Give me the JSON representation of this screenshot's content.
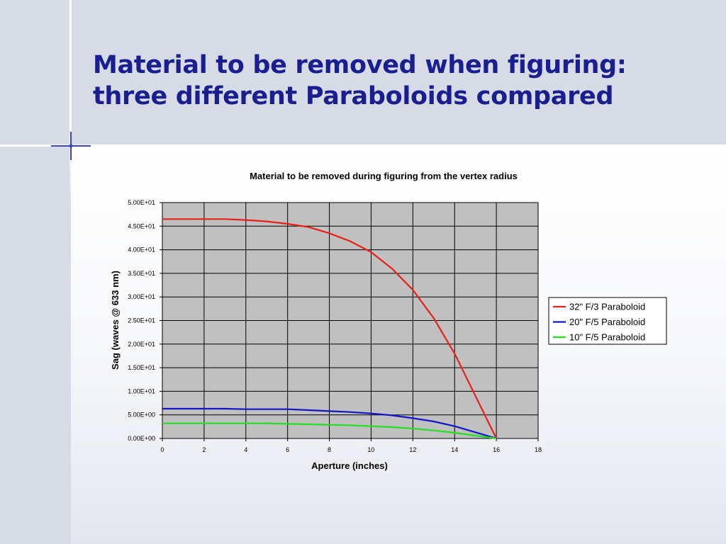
{
  "slide": {
    "title_line1": "Material to be removed when figuring:",
    "title_line2": "three different Paraboloids compared",
    "title_color": "#1a1f8f",
    "background_color": "#d6dbe6"
  },
  "chart_data": {
    "type": "line",
    "title": "Material to be removed during figuring from the vertex radius",
    "xlabel": "Aperture (inches)",
    "ylabel": "Sag (waves @ 633 nm)",
    "xlim": [
      0,
      18
    ],
    "ylim": [
      0,
      50
    ],
    "x_ticks": [
      0,
      2,
      4,
      6,
      8,
      10,
      12,
      14,
      16,
      18
    ],
    "x_tick_labels": [
      "0",
      "2",
      "4",
      "6",
      "8",
      "10",
      "12",
      "14",
      "16",
      "18"
    ],
    "y_ticks": [
      0,
      5,
      10,
      15,
      20,
      25,
      30,
      35,
      40,
      45,
      50
    ],
    "y_tick_labels": [
      "0.00E+00",
      "5.00E+00",
      "1.00E+01",
      "1.50E+01",
      "2.00E+01",
      "2.50E+01",
      "3.00E+01",
      "3.50E+01",
      "4.00E+01",
      "4.50E+01",
      "5.00E+01"
    ],
    "grid": true,
    "plot_background": "#c0c0c0",
    "legend_position": "right",
    "series": [
      {
        "name": "32\" F/3 Paraboloid",
        "color": "#e8201a",
        "x": [
          0,
          1,
          2,
          3,
          4,
          5,
          6,
          7,
          8,
          9,
          10,
          11,
          12,
          13,
          14,
          15,
          16
        ],
        "y": [
          46.5,
          46.5,
          46.5,
          46.5,
          46.3,
          46.0,
          45.5,
          44.8,
          43.5,
          41.8,
          39.5,
          36.0,
          31.5,
          25.5,
          18.0,
          9.0,
          0.0
        ]
      },
      {
        "name": "20\" F/5 Paraboloid",
        "color": "#1515c8",
        "x": [
          0,
          1,
          2,
          3,
          4,
          5,
          6,
          7,
          8,
          9,
          10,
          11,
          12,
          13,
          14,
          15,
          16
        ],
        "y": [
          6.3,
          6.3,
          6.3,
          6.3,
          6.2,
          6.2,
          6.2,
          6.0,
          5.8,
          5.6,
          5.3,
          4.9,
          4.3,
          3.6,
          2.6,
          1.3,
          0.0
        ]
      },
      {
        "name": "10\" F/5 Paraboloid",
        "color": "#22e022",
        "x": [
          0,
          1,
          2,
          3,
          4,
          5,
          6,
          7,
          8,
          9,
          10,
          11,
          12,
          13,
          14,
          15,
          16
        ],
        "y": [
          3.2,
          3.2,
          3.2,
          3.2,
          3.2,
          3.2,
          3.1,
          3.0,
          2.9,
          2.8,
          2.6,
          2.4,
          2.1,
          1.7,
          1.2,
          0.6,
          0.0
        ]
      }
    ]
  }
}
